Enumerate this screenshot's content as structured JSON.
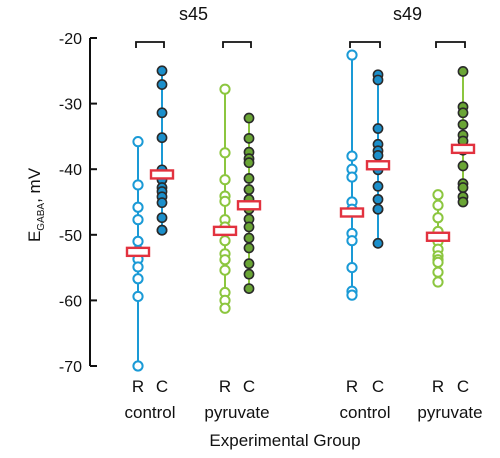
{
  "colors": {
    "blue": "#1a9ad6",
    "blue_fill": "#1b8fcb",
    "green": "#8cc63f",
    "green_fill": "#6aa535",
    "marker_stroke": "#2a2a2a",
    "mean_box": "#e2323f",
    "axis": "#111111"
  },
  "chart_data": {
    "type": "scatter",
    "ylabel_main": "E",
    "ylabel_sub": "GABA",
    "ylabel_unit": ", mV",
    "xlabel": "Experimental Group",
    "ylim": [
      -70,
      -20
    ],
    "yticks": [
      -20,
      -30,
      -40,
      -50,
      -60,
      -70
    ],
    "grid": false,
    "brackets": [
      {
        "label": "s45",
        "groups": [
          0,
          1
        ]
      },
      {
        "label": "s49",
        "groups": [
          2,
          3
        ]
      }
    ],
    "groups": [
      {
        "label": "control",
        "color": "blue",
        "pairs": [
          {
            "tick": "R",
            "filled": false,
            "values": [
              -35.8,
              -42.4,
              -45.8,
              -47.7,
              -51.0,
              -52.4,
              -53.7,
              -54.9,
              -56.7,
              -59.4,
              -70.0
            ],
            "mean": -52.6
          },
          {
            "tick": "C",
            "filled": true,
            "values": [
              -25.0,
              -27.1,
              -31.4,
              -35.2,
              -40.1,
              -41.6,
              -42.8,
              -43.4,
              -44.2,
              -45.1,
              -47.4,
              -49.3,
              -49.3
            ],
            "mean": -40.8
          }
        ]
      },
      {
        "label": "pyruvate",
        "color": "green",
        "pairs": [
          {
            "tick": "R",
            "filled": false,
            "values": [
              -27.8,
              -37.5,
              -41.6,
              -44.1,
              -44.9,
              -47.7,
              -48.8,
              -50.9,
              -52.9,
              -53.8,
              -55.4,
              -58.8,
              -60.0,
              -61.2
            ],
            "mean": -49.4
          },
          {
            "tick": "C",
            "filled": true,
            "values": [
              -32.2,
              -35.3,
              -37.4,
              -38.4,
              -39.0,
              -41.4,
              -43.1,
              -44.6,
              -46.1,
              -47.6,
              -48.8,
              -50.5,
              -52.0,
              -54.4,
              -56.0,
              -58.2
            ],
            "mean": -45.5
          }
        ]
      },
      {
        "label": "control",
        "color": "blue",
        "pairs": [
          {
            "tick": "R",
            "filled": false,
            "values": [
              -22.6,
              -38.0,
              -40.0,
              -41.2,
              -45.0,
              -46.1,
              -49.8,
              -50.9,
              -55.0,
              -58.6,
              -59.2
            ],
            "mean": -46.6
          },
          {
            "tick": "C",
            "filled": true,
            "values": [
              -25.6,
              -26.4,
              -33.8,
              -36.2,
              -37.2,
              -37.9,
              -39.5,
              -40.1,
              -42.6,
              -44.6,
              -46.1,
              -46.1,
              -51.3
            ],
            "mean": -39.4
          }
        ]
      },
      {
        "label": "pyruvate",
        "color": "green",
        "pairs": [
          {
            "tick": "R",
            "filled": false,
            "values": [
              -43.9,
              -45.5,
              -47.4,
              -49.5,
              -51.0,
              -52.2,
              -53.2,
              -53.8,
              -54.2,
              -55.7,
              -57.2
            ],
            "mean": -50.3
          },
          {
            "tick": "C",
            "filled": true,
            "values": [
              -25.1,
              -30.5,
              -31.4,
              -33.2,
              -34.8,
              -35.7,
              -37.1,
              -39.5,
              -42.2,
              -42.8,
              -44.2,
              -45.0
            ],
            "mean": -36.9
          }
        ]
      }
    ]
  }
}
